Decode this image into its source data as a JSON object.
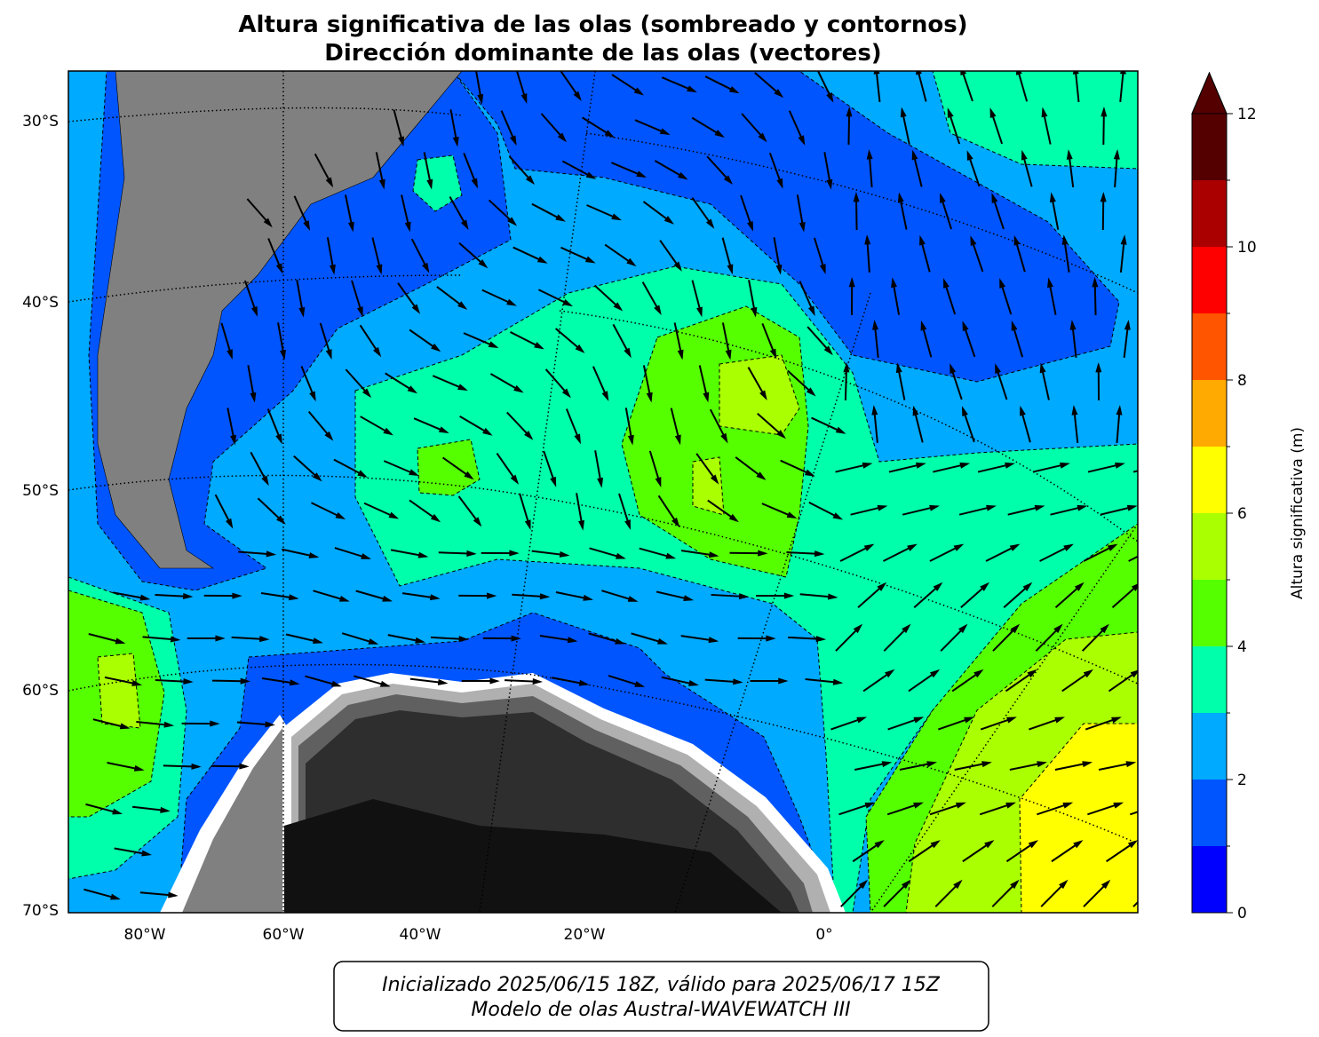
{
  "title": [
    "Altura significativa de las olas (sombreado y contornos)",
    "Dirección dominante de las olas (vectores)"
  ],
  "lat_labels": [
    "30°S",
    "40°S",
    "50°S",
    "60°S",
    "70°S"
  ],
  "lon_labels": [
    "80°W",
    "60°W",
    "40°W",
    "20°W",
    "0°"
  ],
  "colorbar": {
    "label": "Altura significativa (m)",
    "levels": [
      0,
      1,
      2,
      3,
      4,
      5,
      6,
      7,
      8,
      9,
      10,
      11,
      12
    ],
    "colors": [
      "#0000ff",
      "#0055ff",
      "#00aaff",
      "#00ffaa",
      "#55ff00",
      "#aaff00",
      "#ffff00",
      "#ffaa00",
      "#ff5500",
      "#ff0000",
      "#aa0000",
      "#550000"
    ],
    "ticks": [
      0,
      2,
      4,
      6,
      8,
      10,
      12
    ],
    "extend": "max"
  },
  "footer": [
    "Inicializado 2025/06/15 18Z, válido para 2025/06/17 15Z",
    "Modelo de olas Austral-WAVEWATCH III"
  ]
}
